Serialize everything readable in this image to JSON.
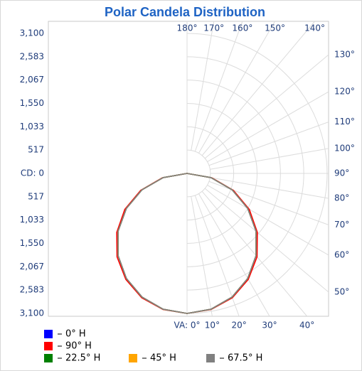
{
  "chart_data": {
    "type": "polar",
    "title": "Polar Candela Distribution",
    "angles": [
      0,
      10,
      20,
      30,
      40,
      50,
      60,
      70,
      80,
      90
    ],
    "series": [
      {
        "name": "0° H",
        "color": "#0000ff",
        "values": [
          3100,
          3053,
          2913,
          2685,
          2375,
          1993,
          1550,
          1060,
          538,
          0
        ]
      },
      {
        "name": "90° H",
        "color": "#ff0000",
        "values": [
          3100,
          3060,
          2930,
          2710,
          2410,
          2030,
          1590,
          1090,
          555,
          0
        ]
      },
      {
        "name": "22.5° H",
        "color": "#008000",
        "values": [
          3100,
          3053,
          2913,
          2685,
          2375,
          1993,
          1550,
          1060,
          538,
          0
        ]
      },
      {
        "name": "45° H",
        "color": "#ffa500",
        "values": [
          3100,
          3053,
          2913,
          2685,
          2375,
          1993,
          1550,
          1060,
          538,
          0
        ]
      },
      {
        "name": "67.5° H",
        "color": "#808080",
        "values": [
          3100,
          3053,
          2913,
          2685,
          2375,
          1993,
          1550,
          1060,
          538,
          0
        ]
      }
    ],
    "rlim": [
      0,
      3100
    ],
    "rticks": [
      {
        "value": 0,
        "label": "CD: 0"
      },
      517,
      {
        "value": 1033,
        "label": "1,033"
      },
      {
        "value": 1550,
        "label": "1,550"
      },
      {
        "value": 2067,
        "label": "2,067"
      },
      {
        "value": 2583,
        "label": "2,583"
      },
      {
        "value": 3100,
        "label": "3,100"
      }
    ],
    "anglelim": [
      0,
      180
    ],
    "angleticks": [
      {
        "value": 0,
        "label": "VA: 0°"
      },
      {
        "value": 10,
        "label": "10°"
      },
      {
        "value": 20,
        "label": "20°"
      },
      {
        "value": 30,
        "label": "30°"
      },
      {
        "value": 40,
        "label": "40°"
      },
      {
        "value": 50,
        "label": "50°"
      },
      {
        "value": 60,
        "label": "60°"
      },
      {
        "value": 70,
        "label": "70°"
      },
      {
        "value": 80,
        "label": "80°"
      },
      {
        "value": 90,
        "label": "90°"
      },
      {
        "value": 100,
        "label": "100°"
      },
      {
        "value": 110,
        "label": "110°"
      },
      {
        "value": 120,
        "label": "120°"
      },
      {
        "value": 130,
        "label": "130°"
      },
      {
        "value": 140,
        "label": "140°"
      },
      {
        "value": 150,
        "label": "150°"
      },
      {
        "value": 160,
        "label": "160°"
      },
      {
        "value": 170,
        "label": "170°"
      },
      {
        "value": 180,
        "label": "180°"
      }
    ],
    "grid": true
  }
}
